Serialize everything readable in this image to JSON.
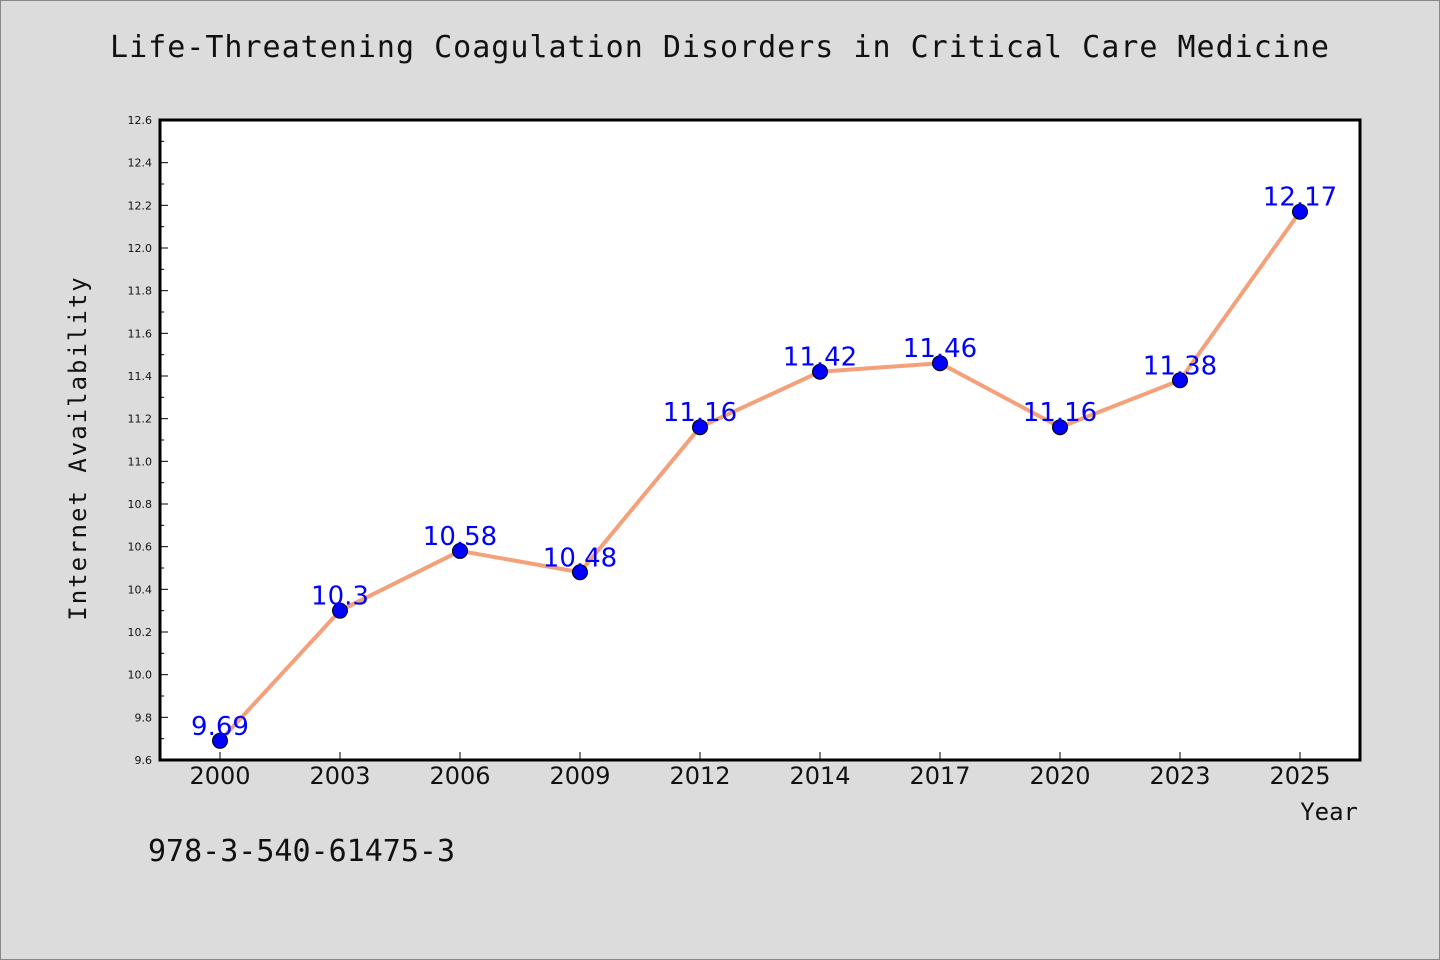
{
  "chart_data": {
    "type": "line",
    "title": "Life-Threatening Coagulation Disorders in Critical Care Medicine",
    "xlabel": "Year",
    "ylabel": "Internet Availability",
    "categories": [
      "2000",
      "2003",
      "2006",
      "2009",
      "2012",
      "2014",
      "2017",
      "2020",
      "2023",
      "2025"
    ],
    "series": [
      {
        "values": [
          9.69,
          10.3,
          10.58,
          10.48,
          11.16,
          11.42,
          11.46,
          11.16,
          11.38,
          12.17
        ],
        "labels": [
          "9.69",
          "10.3",
          "10.58",
          "10.48",
          "11.16",
          "11.42",
          "11.46",
          "11.16",
          "11.38",
          "12.17"
        ],
        "line_color": "#f4a07a",
        "marker_color": "#0000ff",
        "label_color": "#0000ff"
      }
    ],
    "ylim": [
      9.6,
      12.6
    ],
    "yticks": [
      "9.6",
      "9.8",
      "10.0",
      "10.2",
      "10.4",
      "10.6",
      "10.8",
      "11.0",
      "11.2",
      "11.4",
      "11.6",
      "11.8",
      "12.0",
      "12.2",
      "12.4",
      "12.6"
    ],
    "grid": false,
    "legend": "none"
  },
  "footer_text": "978-3-540-61475-3"
}
